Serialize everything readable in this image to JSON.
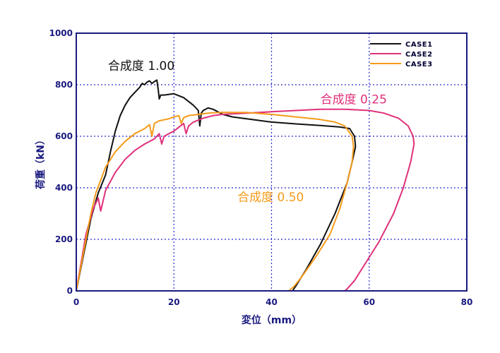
{
  "chart_data": {
    "type": "line",
    "xlabel": "変位（mm）",
    "ylabel": "荷重（kN）",
    "xlim": [
      0,
      80
    ],
    "ylim": [
      0,
      1000
    ],
    "x_ticks": [
      0,
      20,
      40,
      60,
      80
    ],
    "y_ticks": [
      0,
      200,
      400,
      600,
      800,
      1000
    ],
    "grid": true,
    "legend_position": "top-right",
    "series": [
      {
        "name": "CASE1",
        "color": "#111111",
        "x": [
          0,
          3,
          4.5,
          6,
          7,
          8,
          9,
          10,
          11,
          12,
          13,
          13.5,
          14,
          14.5,
          15,
          15.5,
          16,
          16.5,
          16.8,
          17,
          17.3,
          18,
          20,
          22,
          24,
          25,
          25.3,
          25.6,
          26,
          27,
          28,
          29,
          30,
          32,
          36,
          40,
          45,
          50,
          54,
          56,
          57,
          57.2,
          56.5,
          55.5,
          53,
          50,
          47,
          45,
          44.3
        ],
        "y": [
          0,
          280,
          380,
          450,
          540,
          620,
          680,
          720,
          750,
          770,
          790,
          805,
          800,
          810,
          815,
          805,
          812,
          818,
          780,
          745,
          760,
          760,
          765,
          750,
          720,
          700,
          640,
          690,
          700,
          710,
          705,
          695,
          685,
          675,
          665,
          655,
          648,
          642,
          636,
          630,
          600,
          560,
          500,
          420,
          300,
          180,
          80,
          20,
          0
        ]
      },
      {
        "name": "CASE2",
        "color": "#e0307a",
        "x": [
          0,
          2,
          3.5,
          4.5,
          5,
          6,
          8,
          10,
          12,
          14,
          16,
          17,
          17.5,
          18,
          19,
          20,
          21,
          22,
          22.5,
          23,
          24,
          26,
          28,
          30,
          35,
          40,
          45,
          50,
          55,
          60,
          63,
          66,
          68,
          69,
          69.2,
          68.5,
          67,
          65,
          62,
          59,
          57,
          55.5,
          55
        ],
        "y": [
          0,
          220,
          320,
          360,
          310,
          390,
          460,
          510,
          545,
          570,
          590,
          610,
          570,
          600,
          610,
          620,
          635,
          650,
          610,
          640,
          655,
          670,
          680,
          685,
          690,
          695,
          700,
          705,
          705,
          700,
          690,
          670,
          640,
          600,
          570,
          500,
          400,
          300,
          190,
          100,
          40,
          8,
          0
        ]
      },
      {
        "name": "CASE3",
        "color": "#f59b1a",
        "x": [
          0,
          2,
          3,
          4,
          5,
          6,
          8,
          10,
          12,
          14,
          15,
          15.5,
          16,
          17,
          19,
          20,
          21,
          21.5,
          22,
          23,
          25,
          27,
          30,
          35,
          40,
          45,
          50,
          53,
          55,
          56.5,
          56.8,
          56.5,
          55.5,
          54,
          52,
          49,
          46,
          44.5,
          43.5
        ],
        "y": [
          0,
          200,
          300,
          380,
          430,
          480,
          540,
          580,
          610,
          630,
          645,
          600,
          650,
          660,
          668,
          675,
          680,
          650,
          672,
          680,
          685,
          690,
          693,
          692,
          685,
          675,
          665,
          655,
          640,
          600,
          560,
          500,
          420,
          320,
          220,
          130,
          50,
          15,
          0
        ]
      }
    ],
    "annotations": [
      {
        "text": "合成度 1.00",
        "series": "CASE1",
        "x": 6.5,
        "y": 858
      },
      {
        "text": "合成度 0.25",
        "series": "CASE2",
        "x": 50,
        "y": 728
      },
      {
        "text": "合成度 0.50",
        "series": "CASE3",
        "x": 33,
        "y": 348
      }
    ]
  }
}
